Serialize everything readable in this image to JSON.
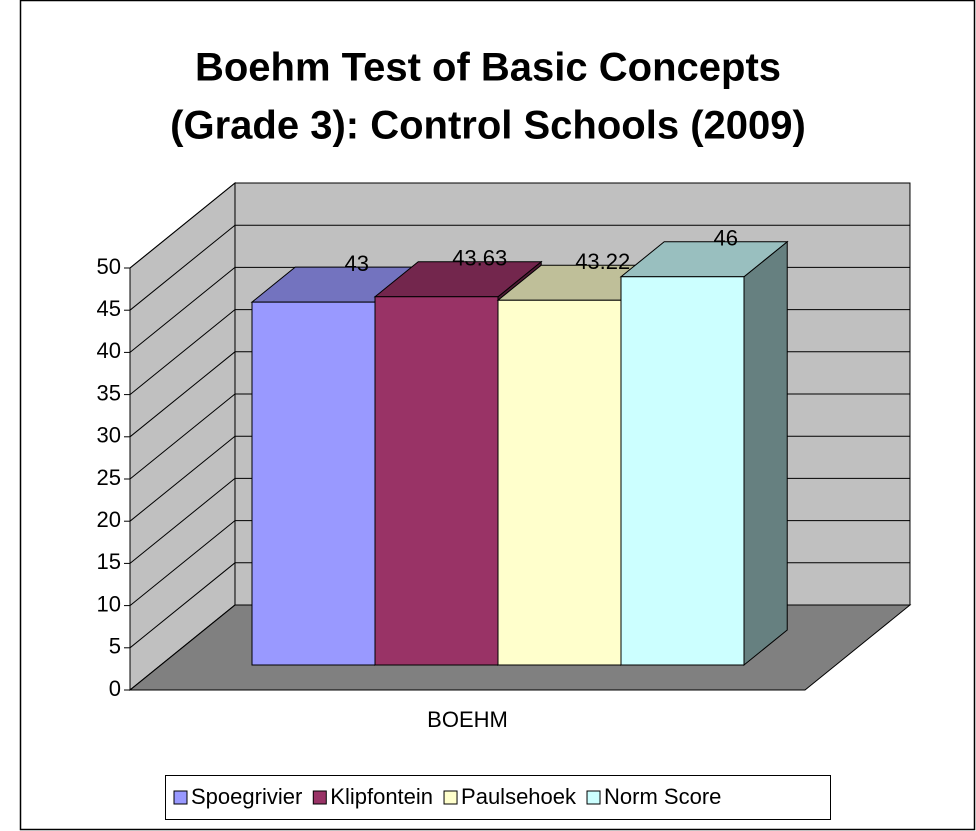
{
  "chart_data": {
    "type": "bar3d",
    "title": [
      "Boehm Test of Basic Concepts",
      "(Grade 3): Control Schools (2009)"
    ],
    "categories": [
      "BOEHM"
    ],
    "series": [
      {
        "name": "Spoegrivier",
        "color": "#9999ff",
        "values": [
          43
        ]
      },
      {
        "name": "Klipfontein",
        "color": "#993366",
        "values": [
          43.63
        ]
      },
      {
        "name": "Paulsehoek",
        "color": "#ffffcc",
        "values": [
          43.22
        ]
      },
      {
        "name": "Norm Score",
        "color": "#ccffff",
        "values": [
          46
        ]
      }
    ],
    "ylim": [
      0,
      50
    ],
    "yticks": [
      0,
      5,
      10,
      15,
      20,
      25,
      30,
      35,
      40,
      45,
      50
    ],
    "grid": true,
    "legend": "bottom"
  }
}
